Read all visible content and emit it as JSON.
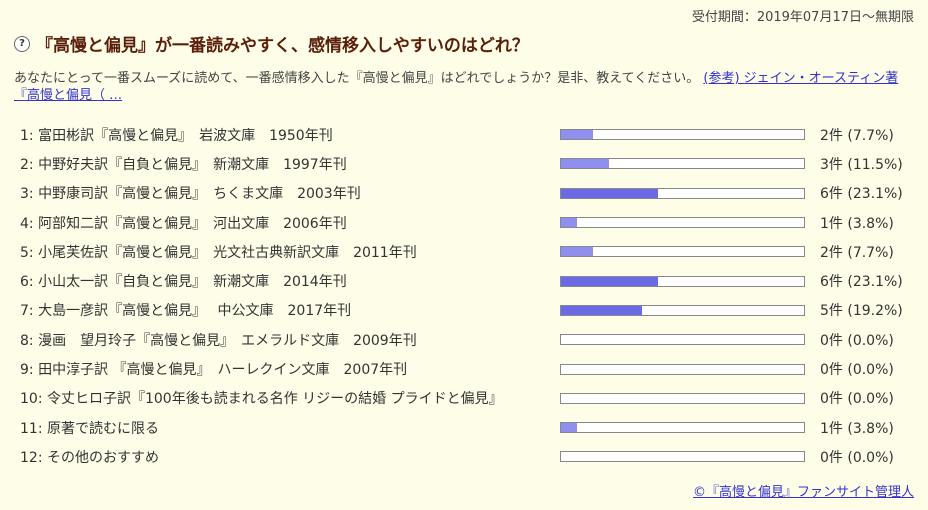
{
  "poll": {
    "deadline": "受付期間：2019年07月17日〜無期限",
    "title": "『高慢と偏見』が一番読みやすく、感情移入しやすいのはどれ？",
    "description": "あなたにとって一番スムーズに読めて、一番感情移入した『高慢と偏見』はどれでしょうか？是非、教えてください。",
    "reference_link": "(参考) ジェイン・オースティン著『高慢と偏見（ …",
    "footer_link": "©『高慢と偏見』ファンサイト管理人"
  },
  "colors": {
    "background": "#fefde8",
    "bar_light": "#8f8ff0",
    "bar_dark": "#6a6ae6",
    "title": "#5a1f0a",
    "link": "#3333cc"
  },
  "icons": {
    "question": "question-circle-icon"
  },
  "options": [
    {
      "label": "1: 富田彬訳『高慢と偏見』　岩波文庫　1950年刊",
      "count": "2件 (7.7%)",
      "percent": 7.7
    },
    {
      "label": "2: 中野好夫訳『自負と偏見』　新潮文庫　1997年刊",
      "count": "3件 (11.5%)",
      "percent": 11.5
    },
    {
      "label": "3: 中野康司訳『高慢と偏見』　ちくま文庫　2003年刊",
      "count": "6件 (23.1%)",
      "percent": 23.1
    },
    {
      "label": "4: 阿部知二訳『高慢と偏見』　河出文庫　2006年刊",
      "count": "1件 (3.8%)",
      "percent": 3.8
    },
    {
      "label": "5: 小尾芙佐訳『高慢と偏見』　光文社古典新訳文庫　2011年刊",
      "count": "2件 (7.7%)",
      "percent": 7.7
    },
    {
      "label": "6: 小山太一訳『自負と偏見』　新潮文庫　2014年刊",
      "count": "6件 (23.1%)",
      "percent": 23.1
    },
    {
      "label": "7: 大島一彦訳『高慢と偏見』　 中公文庫　2017年刊",
      "count": "5件 (19.2%)",
      "percent": 19.2
    },
    {
      "label": "8: 漫画　望月玲子『高慢と偏見』　エメラルド文庫　2009年刊",
      "count": "0件 (0.0%)",
      "percent": 0
    },
    {
      "label": "9: 田中淳子訳 『高慢と偏見』　ハーレクイン文庫　2007年刊",
      "count": "0件 (0.0%)",
      "percent": 0
    },
    {
      "label": "10: 令丈ヒロ子訳『100年後も読まれる名作 リジーの結婚 プライドと偏見』",
      "count": "0件 (0.0%)",
      "percent": 0
    },
    {
      "label": "11: 原著で読むに限る",
      "count": "1件 (3.8%)",
      "percent": 3.8
    },
    {
      "label": "12: その他のおすすめ",
      "count": "0件 (0.0%)",
      "percent": 0
    }
  ]
}
